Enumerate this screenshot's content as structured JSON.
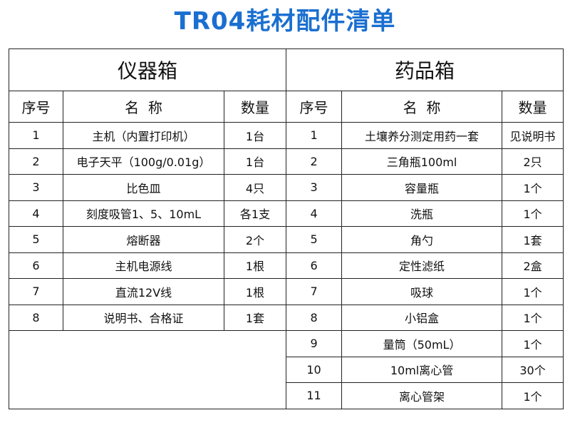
{
  "title": "TR04耗材配件清单",
  "left": {
    "heading": "仪器箱",
    "columns": [
      "序号",
      "名  称",
      "数量"
    ],
    "rows": [
      [
        "1",
        "主机（内置打印机）",
        "1台"
      ],
      [
        "2",
        "电子天平（100g/0.01g）",
        "1台"
      ],
      [
        "3",
        "比色皿",
        "4只"
      ],
      [
        "4",
        "刻度吸管1、5、10mL",
        "各1支"
      ],
      [
        "5",
        "熔断器",
        "2个"
      ],
      [
        "6",
        "主机电源线",
        "1根"
      ],
      [
        "7",
        "直流12V线",
        "1根"
      ],
      [
        "8",
        "说明书、合格证",
        "1套"
      ]
    ]
  },
  "right": {
    "heading": "药品箱",
    "columns": [
      "序号",
      "名  称",
      "数量"
    ],
    "rows": [
      [
        "1",
        "土壤养分测定用药一套",
        "见说明书"
      ],
      [
        "2",
        "三角瓶100ml",
        "2只"
      ],
      [
        "3",
        "容量瓶",
        "1个"
      ],
      [
        "4",
        "洗瓶",
        "1个"
      ],
      [
        "5",
        "角勺",
        "1套"
      ],
      [
        "6",
        "定性滤纸",
        "2盒"
      ],
      [
        "7",
        "吸球",
        "1个"
      ],
      [
        "8",
        "小铝盒",
        "1个"
      ],
      [
        "9",
        "量筒（50mL）",
        "1个"
      ],
      [
        "10",
        "10ml离心管",
        "30个"
      ],
      [
        "11",
        "离心管架",
        "1个"
      ]
    ]
  }
}
